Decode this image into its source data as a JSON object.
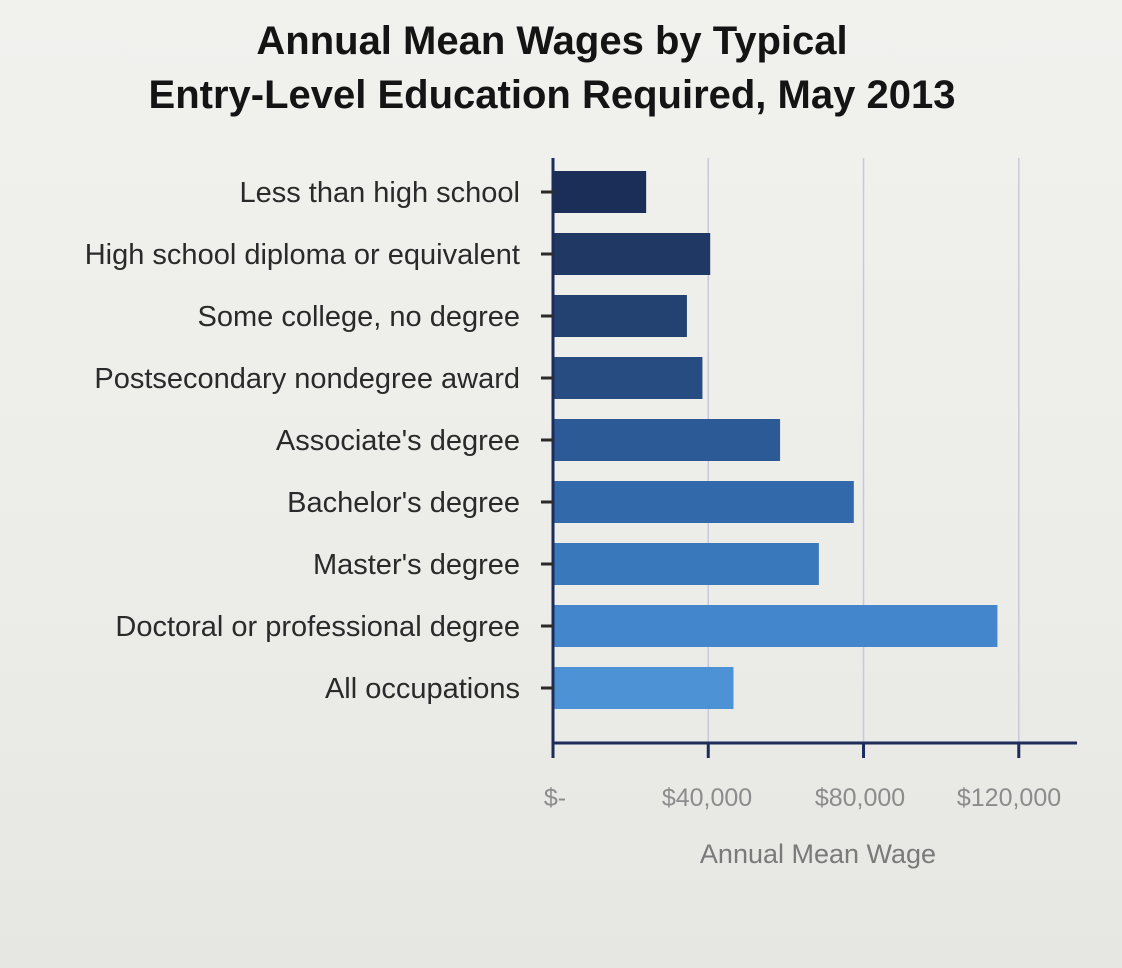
{
  "chart_data": {
    "type": "bar",
    "orientation": "horizontal",
    "title": "Annual Mean Wages by Typical Entry-Level Education Required, May 2013",
    "title_lines": [
      "Annual Mean Wages by Typical",
      "Entry-Level Education Required, May 2013"
    ],
    "categories": [
      "Less than high school",
      "High school diploma or equivalent",
      "Some college, no degree",
      "Postsecondary nondegree award",
      "Associate's degree",
      "Bachelor's degree",
      "Master's degree",
      "Doctoral or professional degree",
      "All occupations"
    ],
    "values": [
      24000,
      40500,
      34500,
      38500,
      58500,
      77500,
      68500,
      114500,
      46500
    ],
    "colors": [
      "#1a2e57",
      "#1f3864",
      "#234171",
      "#274c82",
      "#2b5a97",
      "#3269aa",
      "#3a78bc",
      "#4486cb",
      "#4d92d4"
    ],
    "xlabel": "Annual Mean Wage",
    "ylabel": "",
    "xlim": [
      0,
      135000
    ],
    "xticks": [
      0,
      40000,
      80000,
      120000
    ],
    "xtick_labels": [
      "$-",
      "$40,000",
      "$80,000",
      "$120,000"
    ],
    "gridlines": "vertical",
    "legend": "none"
  }
}
